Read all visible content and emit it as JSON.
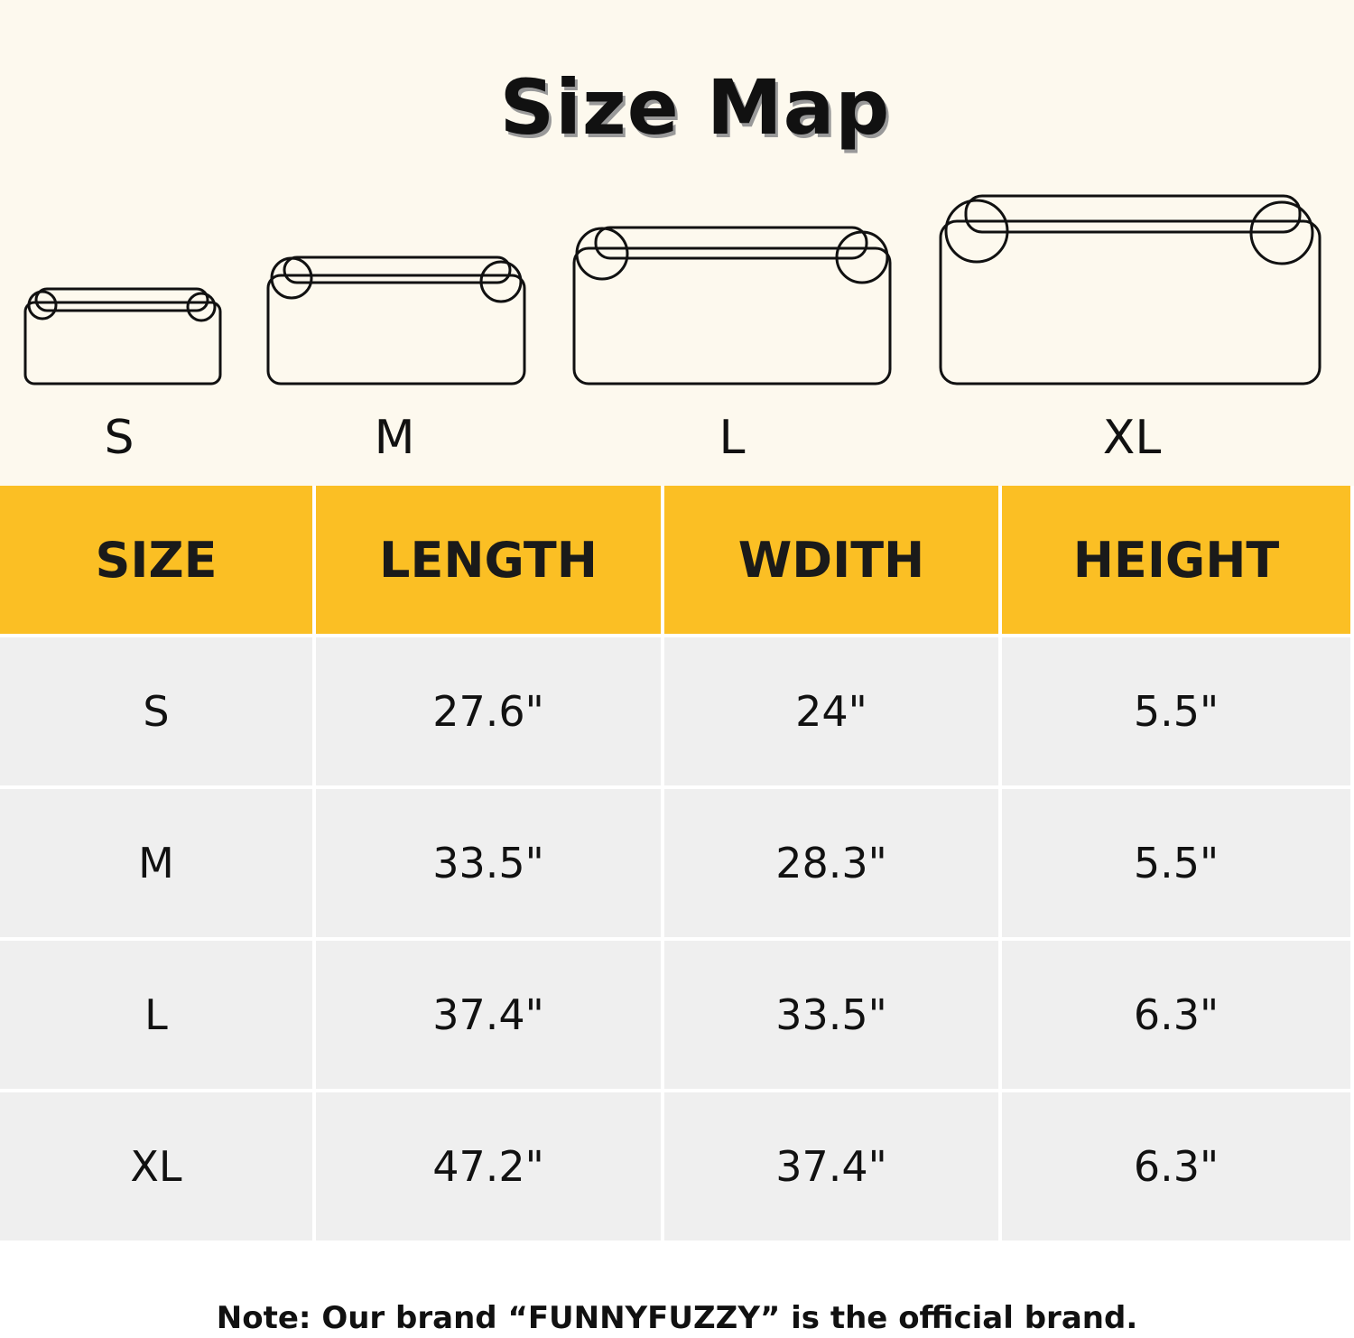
{
  "title": "Size Map",
  "sizes": [
    "S",
    "M",
    "L",
    "XL"
  ],
  "table": {
    "headers": [
      "SIZE",
      "LENGTH",
      "WDITH",
      "HEIGHT"
    ],
    "rows": [
      [
        "S",
        "27.6\"",
        "24\"",
        "5.5\""
      ],
      [
        "M",
        "33.5\"",
        "28.3\"",
        "5.5\""
      ],
      [
        "L",
        "37.4\"",
        "33.5\"",
        "6.3\""
      ],
      [
        "XL",
        "47.2\"",
        "37.4\"",
        "6.3\""
      ]
    ]
  },
  "note": "Note: Our brand “FUNNYFUZZY” is the official brand.",
  "colors": {
    "header": "#fbbf24",
    "cell": "#efefef",
    "background": "#fdf9ee"
  }
}
